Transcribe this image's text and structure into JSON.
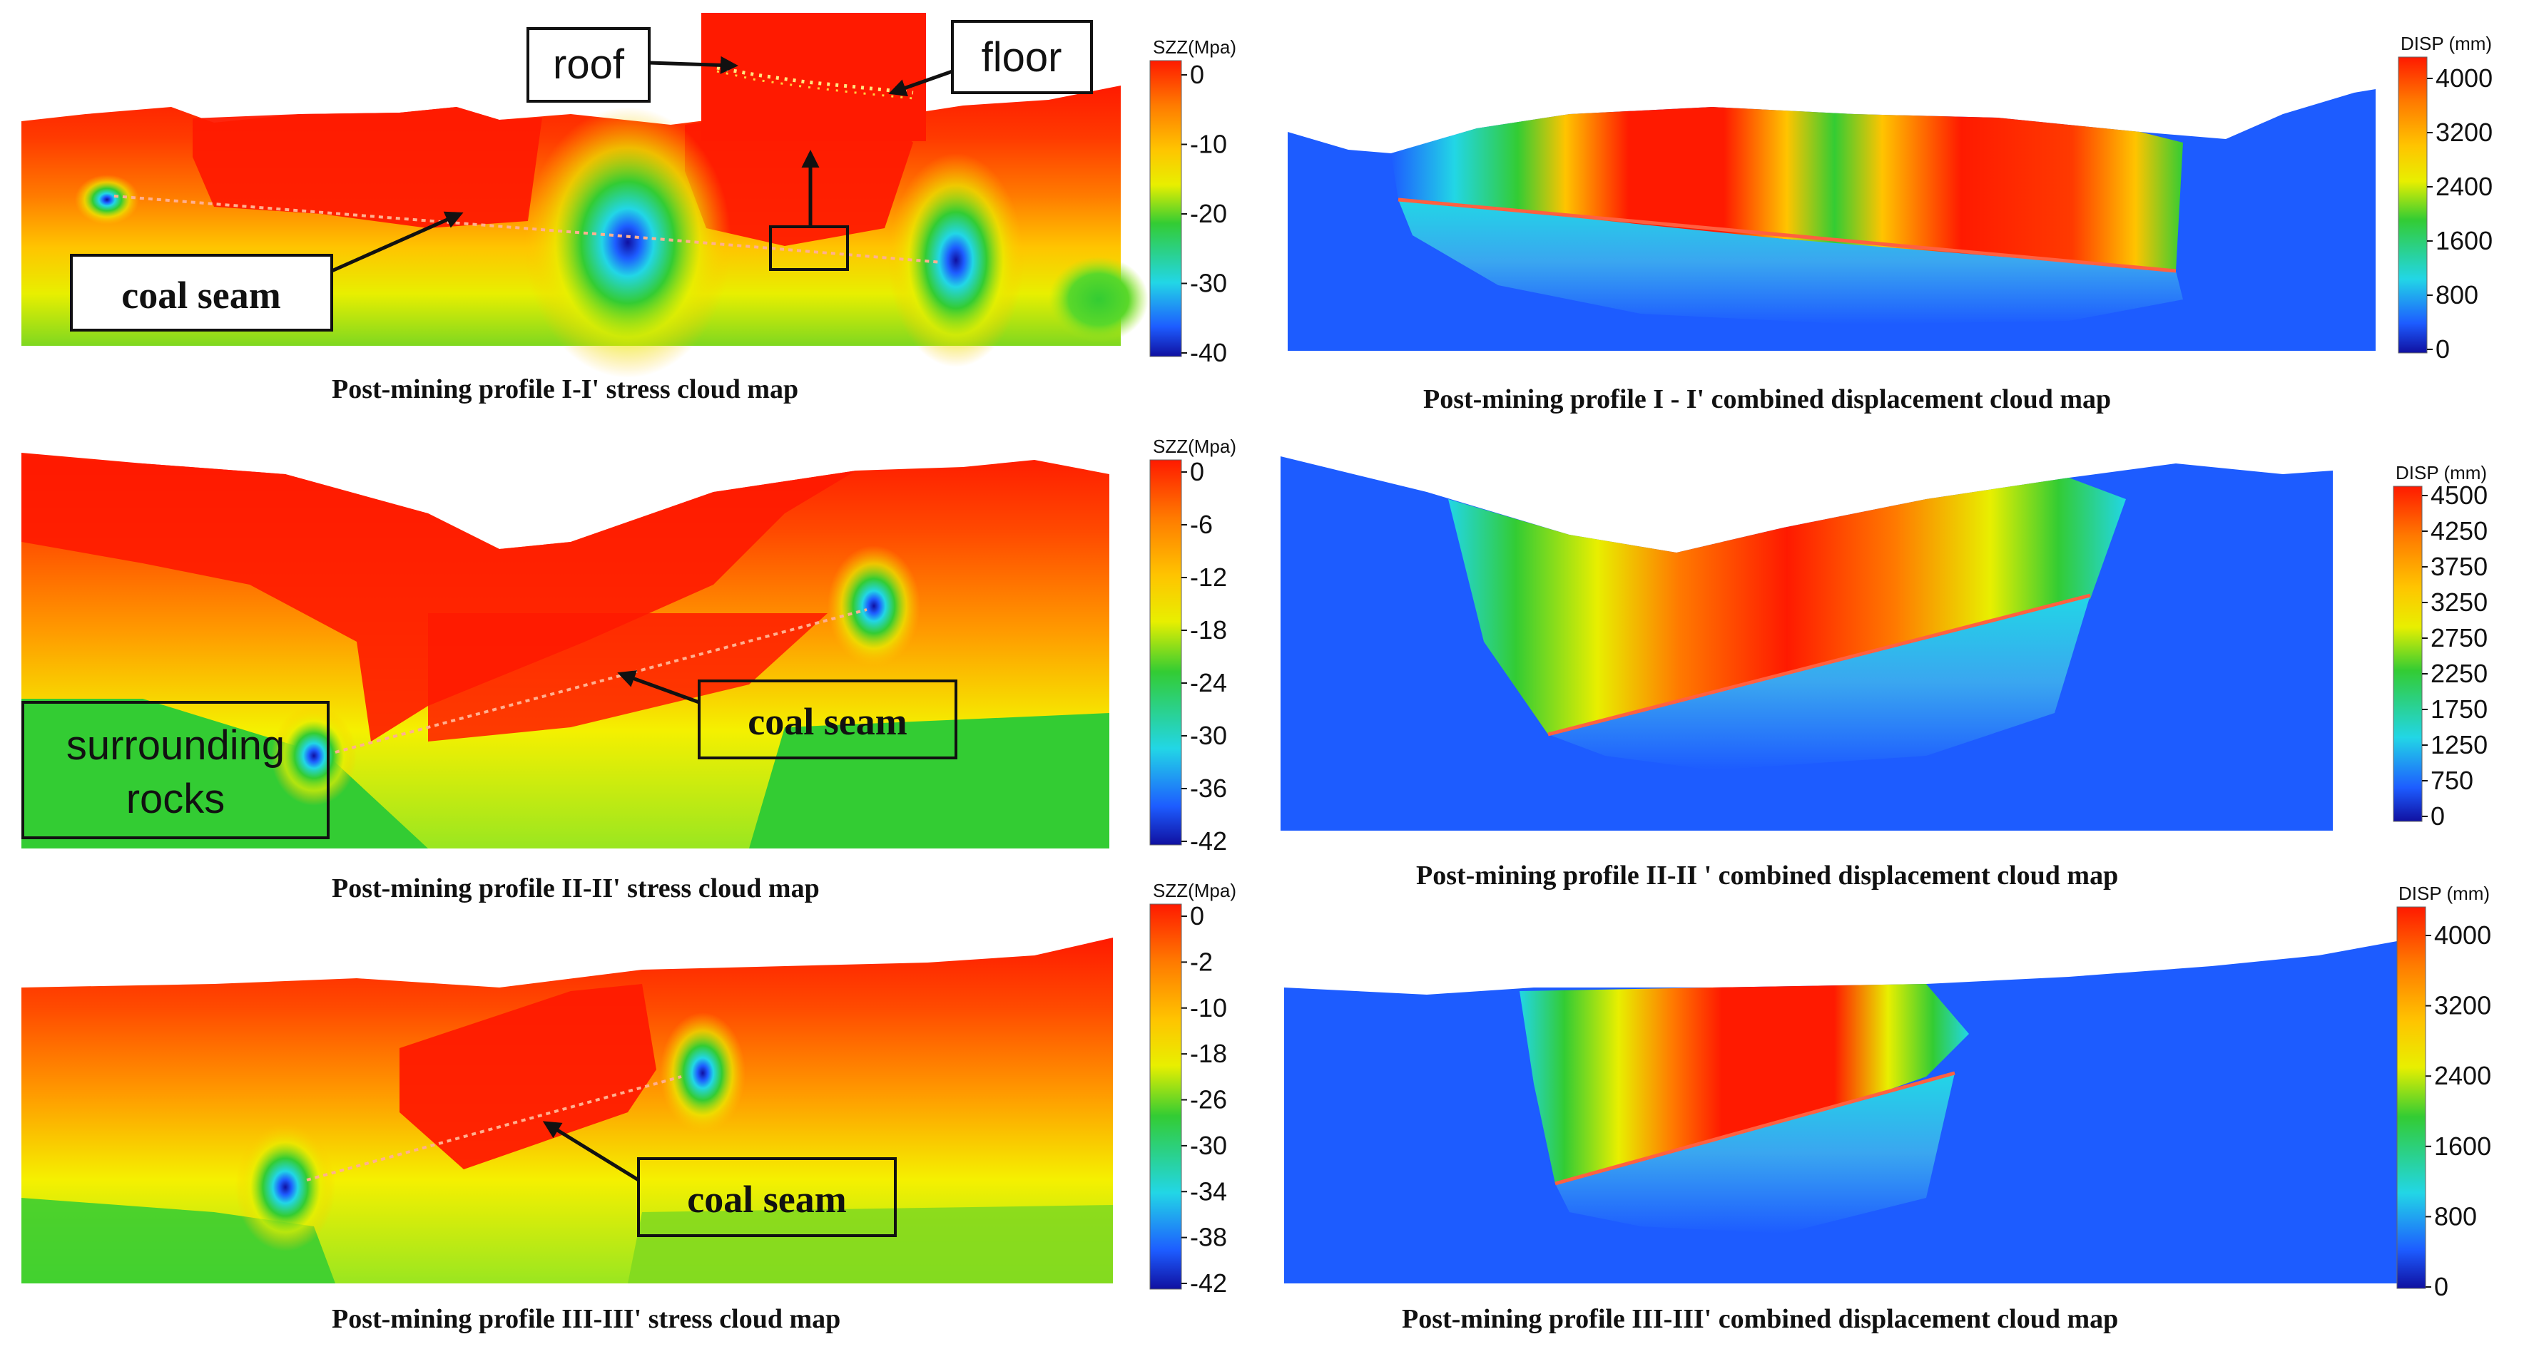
{
  "panels": [
    {
      "id": "stress-1",
      "caption": "Post-mining profile I-I' stress cloud map",
      "colorbar": {
        "title": "SZZ(Mpa)",
        "ticks": [
          "0",
          "-10",
          "-20",
          "-30",
          "-40"
        ]
      },
      "labels": [
        "roof",
        "floor",
        "coal seam"
      ]
    },
    {
      "id": "disp-1",
      "caption": "Post-mining profile I - I' combined displacement cloud map",
      "colorbar": {
        "title": "DISP (mm)",
        "ticks": [
          "4000",
          "3200",
          "2400",
          "1600",
          "800",
          "0"
        ]
      }
    },
    {
      "id": "stress-2",
      "caption": "Post-mining profile II-II' stress cloud map",
      "colorbar": {
        "title": "SZZ(Mpa)",
        "ticks": [
          "0",
          "-6",
          "-12",
          "-18",
          "-24",
          "-30",
          "-36",
          "-42"
        ]
      },
      "labels": [
        "surrounding rocks",
        "coal seam"
      ]
    },
    {
      "id": "disp-2",
      "caption": "Post-mining profile II-II ' combined displacement cloud map",
      "colorbar": {
        "title": "DISP (mm)",
        "ticks": [
          "4500",
          "4250",
          "3750",
          "3250",
          "2750",
          "2250",
          "1750",
          "1250",
          "750",
          "0"
        ]
      }
    },
    {
      "id": "stress-3",
      "caption": "Post-mining profile III-III' stress cloud map",
      "colorbar": {
        "title": "SZZ(Mpa)",
        "ticks": [
          "0",
          "-2",
          "-10",
          "-18",
          "-26",
          "-30",
          "-34",
          "-38",
          "-42"
        ]
      },
      "labels": [
        "coal seam"
      ]
    },
    {
      "id": "disp-3",
      "caption": "Post-mining profile III-III' combined displacement cloud map",
      "colorbar": {
        "title": "DISP (mm)",
        "ticks": [
          "4000",
          "3200",
          "2400",
          "1600",
          "800",
          "0"
        ]
      }
    }
  ],
  "colors": {
    "red": "#ff1a00",
    "orange": "#ff7a00",
    "yellow": "#f5f000",
    "green": "#33cc33",
    "cyan": "#22d6e6",
    "blue": "#1d5cff",
    "navy": "#1010a0"
  }
}
